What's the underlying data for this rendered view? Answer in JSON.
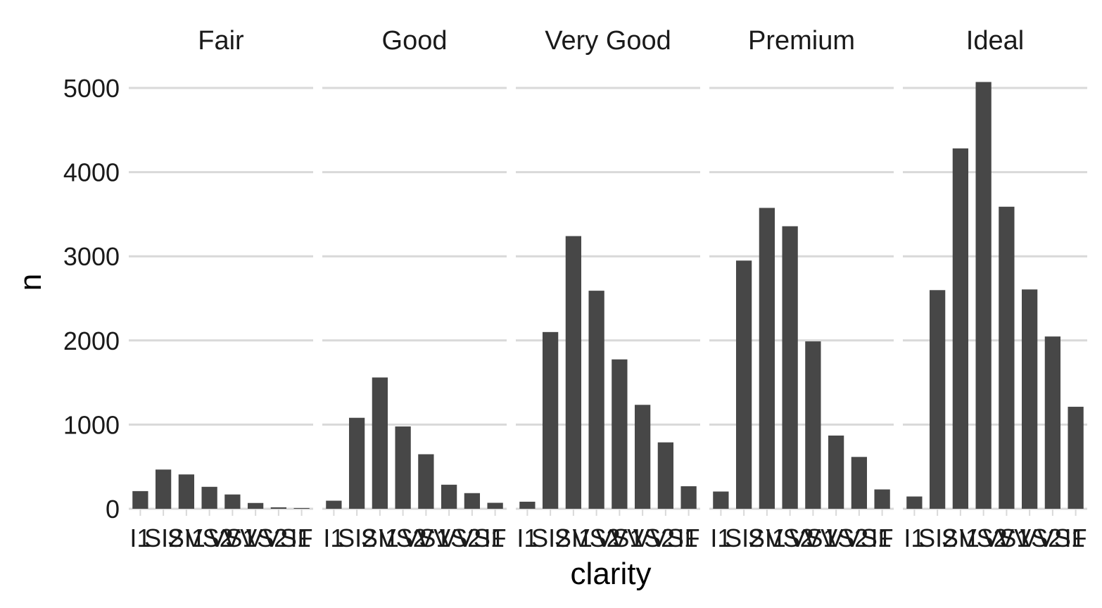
{
  "chart_data": {
    "type": "bar",
    "xlabel": "clarity",
    "ylabel": "n",
    "ylim": [
      0,
      5250
    ],
    "yticks": [
      0,
      1000,
      2000,
      3000,
      4000,
      5000
    ],
    "grid": "horizontal major",
    "bar_color": "#474747",
    "categories": [
      "I1",
      "SI2",
      "SI1",
      "VS2",
      "VS1",
      "VVS2",
      "VVS1",
      "IF"
    ],
    "facets": [
      {
        "name": "Fair",
        "values": [
          210,
          466,
          408,
          261,
          170,
          69,
          17,
          9
        ]
      },
      {
        "name": "Good",
        "values": [
          96,
          1081,
          1560,
          978,
          648,
          286,
          186,
          71
        ]
      },
      {
        "name": "Very Good",
        "values": [
          84,
          2100,
          3240,
          2591,
          1775,
          1235,
          789,
          268
        ]
      },
      {
        "name": "Premium",
        "values": [
          205,
          2949,
          3575,
          3357,
          1989,
          870,
          616,
          230
        ]
      },
      {
        "name": "Ideal",
        "values": [
          146,
          2598,
          4282,
          5071,
          3589,
          2606,
          2047,
          1212
        ]
      }
    ]
  }
}
